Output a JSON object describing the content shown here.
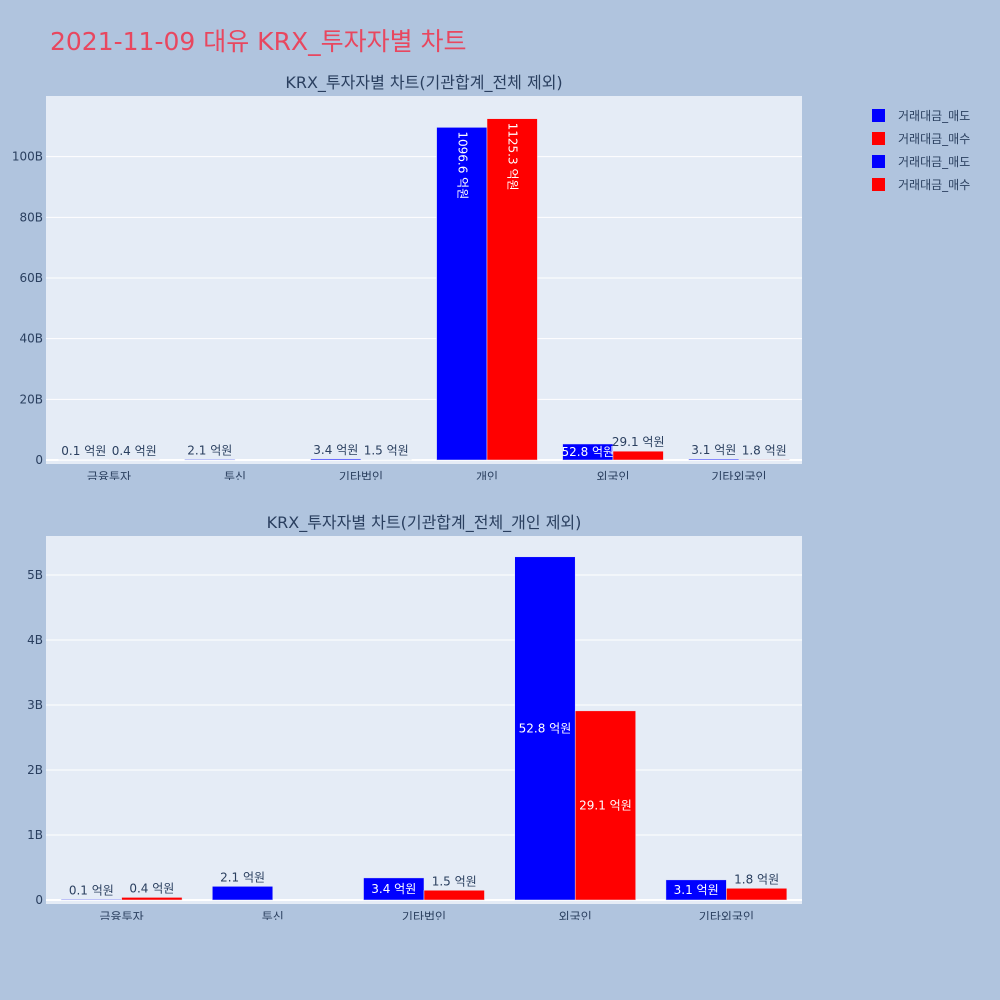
{
  "page_title": "2021-11-09 대유 KRX_투자자별 차트",
  "colors": {
    "sell": "#0000ff",
    "buy": "#ff0000",
    "plot_bg": "#e5ecf6",
    "paper_bg": "#b0c4de",
    "text": "#2a3f5f",
    "title": "#e8475f"
  },
  "legend": [
    {
      "label": "거래대금_매도",
      "color": "#0000ff"
    },
    {
      "label": "거래대금_매수",
      "color": "#ff0000"
    },
    {
      "label": "거래대금_매도",
      "color": "#0000ff"
    },
    {
      "label": "거래대금_매수",
      "color": "#ff0000"
    }
  ],
  "chart_data": [
    {
      "type": "bar",
      "title": "KRX_투자자별 차트(기관합계_전체 제외)",
      "categories": [
        "금융투자",
        "투신",
        "기타법인",
        "개인",
        "외국인",
        "기타외국인"
      ],
      "ylim": [
        0,
        120
      ],
      "yticks": [
        0,
        20,
        40,
        60,
        80,
        100
      ],
      "ytick_labels": [
        "0",
        "20B",
        "40B",
        "60B",
        "80B",
        "100B"
      ],
      "grid": true,
      "legend_position": "top-right",
      "series": [
        {
          "name": "거래대금_매도",
          "color": "#0000ff",
          "values": [
            0.01,
            0.21,
            0.34,
            109.66,
            5.28,
            0.31
          ],
          "labels": [
            "0.1 억원",
            "2.1 억원",
            "3.4 억원",
            "1096.6 억원",
            "52.8 억원",
            "3.1 억원"
          ]
        },
        {
          "name": "거래대금_매수",
          "color": "#ff0000",
          "values": [
            0.04,
            0,
            0.15,
            112.53,
            2.91,
            0.18
          ],
          "labels": [
            "0.4 억원",
            "",
            "1.5 억원",
            "1125.3 억원",
            "29.1 억원",
            "1.8 억원"
          ]
        }
      ]
    },
    {
      "type": "bar",
      "title": "KRX_투자자별 차트(기관합계_전체_개인 제외)",
      "categories": [
        "금융투자",
        "투신",
        "기타법인",
        "외국인",
        "기타외국인"
      ],
      "ylim": [
        0,
        5.6
      ],
      "yticks": [
        0,
        1,
        2,
        3,
        4,
        5
      ],
      "ytick_labels": [
        "0",
        "1B",
        "2B",
        "3B",
        "4B",
        "5B"
      ],
      "grid": true,
      "series": [
        {
          "name": "거래대금_매도",
          "color": "#0000ff",
          "values": [
            0.01,
            0.21,
            0.34,
            5.28,
            0.31
          ],
          "labels": [
            "0.1 억원",
            "2.1 억원",
            "3.4 억원",
            "52.8 억원",
            "3.1 억원"
          ]
        },
        {
          "name": "거래대금_매수",
          "color": "#ff0000",
          "values": [
            0.04,
            0,
            0.15,
            2.91,
            0.18
          ],
          "labels": [
            "0.4 억원",
            "",
            "1.5 억원",
            "29.1 억원",
            "1.8 억원"
          ]
        }
      ]
    }
  ]
}
